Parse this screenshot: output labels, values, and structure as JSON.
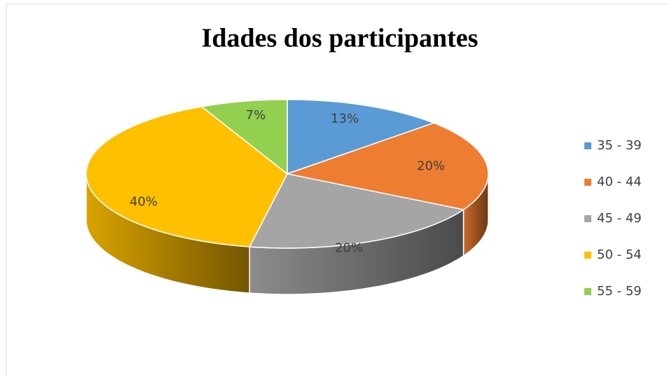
{
  "chart_data": {
    "type": "pie3d",
    "title": "Idades dos participantes",
    "categories": [
      "35 - 39",
      "40 - 44",
      "45 - 49",
      "50 - 54",
      "55 - 59"
    ],
    "values": [
      13,
      20,
      20,
      40,
      7
    ],
    "value_labels": [
      "13%",
      "20%",
      "20%",
      "40%",
      "7%"
    ],
    "colors": [
      "#5b9bd5",
      "#ed7d31",
      "#a5a5a5",
      "#ffc000",
      "#92d050"
    ],
    "legend": "right"
  }
}
